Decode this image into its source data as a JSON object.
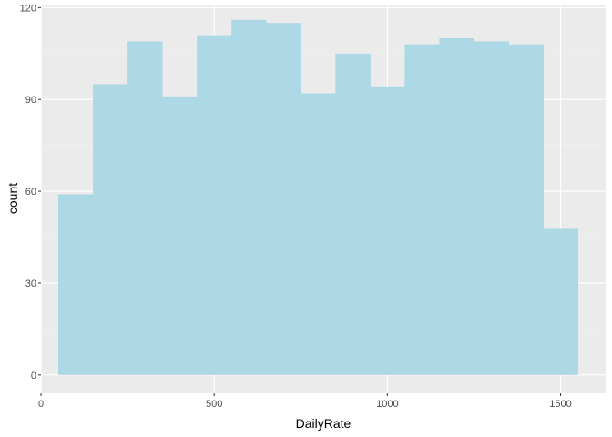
{
  "chart_data": {
    "type": "bar",
    "subtype": "histogram",
    "xlabel": "DailyRate",
    "ylabel": "count",
    "xlim": [
      0,
      1630
    ],
    "ylim": [
      -6,
      121
    ],
    "x_ticks": [
      0,
      500,
      1000,
      1500
    ],
    "y_ticks": [
      0,
      30,
      60,
      90,
      120
    ],
    "grid": true,
    "legend": "none",
    "bins": [
      {
        "x0": 50,
        "x1": 150,
        "count": 59
      },
      {
        "x0": 150,
        "x1": 250,
        "count": 95
      },
      {
        "x0": 250,
        "x1": 350,
        "count": 109
      },
      {
        "x0": 350,
        "x1": 450,
        "count": 91
      },
      {
        "x0": 450,
        "x1": 550,
        "count": 111
      },
      {
        "x0": 550,
        "x1": 650,
        "count": 116
      },
      {
        "x0": 650,
        "x1": 750,
        "count": 115
      },
      {
        "x0": 750,
        "x1": 850,
        "count": 92
      },
      {
        "x0": 850,
        "x1": 950,
        "count": 105
      },
      {
        "x0": 950,
        "x1": 1050,
        "count": 94
      },
      {
        "x0": 1050,
        "x1": 1150,
        "count": 108
      },
      {
        "x0": 1150,
        "x1": 1250,
        "count": 110
      },
      {
        "x0": 1250,
        "x1": 1350,
        "count": 109
      },
      {
        "x0": 1350,
        "x1": 1450,
        "count": 108
      },
      {
        "x0": 1450,
        "x1": 1550,
        "count": 48
      }
    ],
    "colors": {
      "bar_fill": "#add8e6",
      "panel_background": "#ebebeb",
      "grid_major": "#ffffff",
      "grid_minor": "#f2f2f2",
      "tick_text": "#4d4d4d",
      "tick_mark": "#333333"
    }
  }
}
